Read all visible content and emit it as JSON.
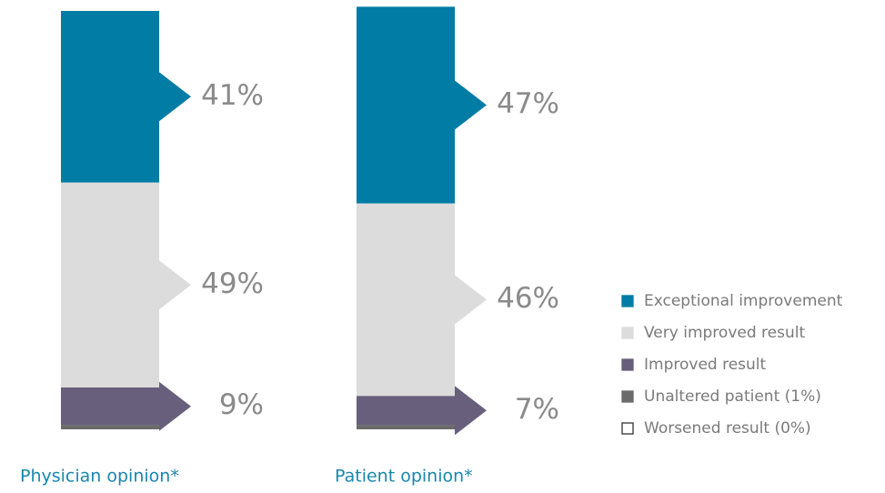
{
  "chart_data": {
    "type": "stacked-bar",
    "categories": [
      "Physician opinion*",
      "Patient opinion*"
    ],
    "series": [
      {
        "name": "Unaltered patient (1%)",
        "color": "#6b6b6b",
        "values": [
          1,
          1
        ]
      },
      {
        "name": "Improved result",
        "color": "#675f7b",
        "values": [
          9,
          7
        ],
        "value_labels": [
          "9%",
          "7%"
        ]
      },
      {
        "name": "Very improved result",
        "color": "#dcdcdc",
        "values": [
          49,
          46
        ],
        "value_labels": [
          "49%",
          "46%"
        ]
      },
      {
        "name": "Exceptional improvement",
        "color": "#007ca5",
        "values": [
          41,
          47
        ],
        "value_labels": [
          "41%",
          "47%"
        ]
      },
      {
        "name": "Worsened result (0%)",
        "color": "#ffffff",
        "values": [
          0,
          0
        ]
      }
    ],
    "legend_order": [
      3,
      2,
      1,
      0,
      4
    ]
  }
}
